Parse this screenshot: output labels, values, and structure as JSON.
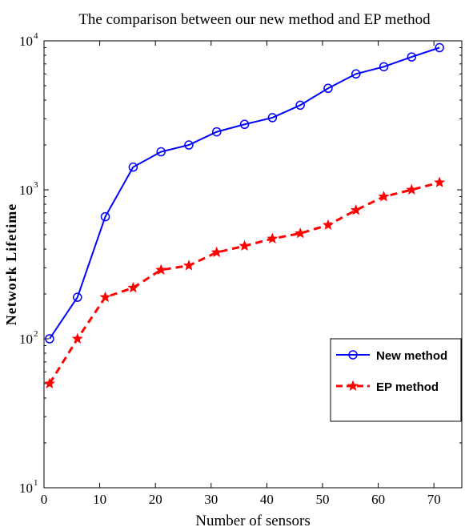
{
  "chart_data": {
    "type": "line",
    "title": "The comparison between our new method and EP method",
    "xlabel": "Number of sensors",
    "ylabel": "Network Lifetime",
    "xlim": [
      0,
      75
    ],
    "ylim": [
      10,
      10000
    ],
    "yscale": "log",
    "grid": false,
    "legend_position": "lower-right",
    "x_ticks": [
      0,
      10,
      20,
      30,
      40,
      50,
      60,
      70
    ],
    "x_tick_labels": [
      "0",
      "10",
      "20",
      "30",
      "40",
      "50",
      "60",
      "70"
    ],
    "y_ticks": [
      10,
      100,
      1000,
      10000
    ],
    "y_tick_labels": [
      {
        "base": "10",
        "exp": "1"
      },
      {
        "base": "10",
        "exp": "2"
      },
      {
        "base": "10",
        "exp": "3"
      },
      {
        "base": "10",
        "exp": "4"
      }
    ],
    "x": [
      1,
      6,
      11,
      16,
      21,
      26,
      31,
      36,
      41,
      46,
      51,
      56,
      61,
      66,
      71
    ],
    "series": [
      {
        "name": "New method",
        "color": "#0000ff",
        "line_style": "solid",
        "marker": "circle",
        "values": [
          100,
          190,
          660,
          1420,
          1800,
          2000,
          2450,
          2750,
          3050,
          3700,
          4800,
          6000,
          6700,
          7800,
          9000
        ]
      },
      {
        "name": "EP method",
        "color": "#ff0000",
        "line_style": "dashed",
        "marker": "star",
        "values": [
          50,
          100,
          190,
          220,
          290,
          310,
          380,
          420,
          470,
          510,
          580,
          730,
          900,
          1000,
          1120
        ]
      }
    ]
  }
}
